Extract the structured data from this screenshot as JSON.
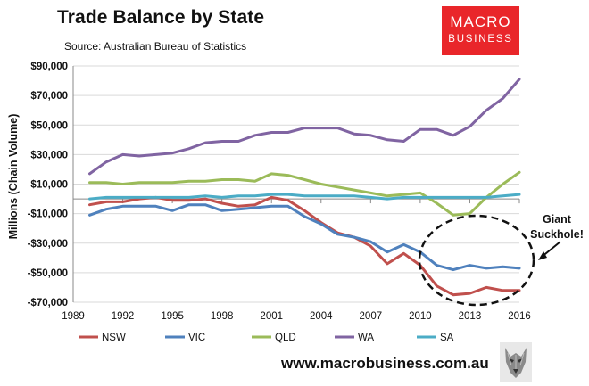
{
  "header": {
    "title": "Trade Balance by State",
    "source": "Source: Australian Bureau of Statistics"
  },
  "logo": {
    "line1": "MACRO",
    "line2": "BUSINESS"
  },
  "footer": {
    "website": "www.macrobusiness.com.au"
  },
  "annotation": {
    "line1": "Giant",
    "line2": "Suckhole!"
  },
  "colors": {
    "NSW": "#c0504d",
    "VIC": "#4f81bd",
    "QLD": "#9bbb59",
    "WA": "#8064a2",
    "SA": "#4bacc6",
    "brand": "#e9262a"
  },
  "chart_data": {
    "type": "line",
    "title": "Trade Balance by State",
    "xlabel": "",
    "ylabel": "Millions (Chain Volume)",
    "xlim": [
      1989,
      2016
    ],
    "ylim": [
      -70000,
      90000
    ],
    "x_ticks": [
      1989,
      1992,
      1995,
      1998,
      2001,
      2004,
      2007,
      2010,
      2013,
      2016
    ],
    "y_ticks": [
      -70000,
      -50000,
      -30000,
      -10000,
      10000,
      30000,
      50000,
      70000,
      90000
    ],
    "y_tick_labels": [
      "-$70,000",
      "-$50,000",
      "-$30,000",
      "-$10,000",
      "$10,000",
      "$30,000",
      "$50,000",
      "$70,000",
      "$90,000"
    ],
    "grid": "horizontal",
    "legend_position": "bottom",
    "x": [
      1990,
      1991,
      1992,
      1993,
      1994,
      1995,
      1996,
      1997,
      1998,
      1999,
      2000,
      2001,
      2002,
      2003,
      2004,
      2005,
      2006,
      2007,
      2008,
      2009,
      2010,
      2011,
      2012,
      2013,
      2014,
      2015,
      2016
    ],
    "series": [
      {
        "name": "NSW",
        "values": [
          -4000,
          -2000,
          -2000,
          0,
          1000,
          -1000,
          -1000,
          0,
          -3000,
          -5000,
          -4000,
          1000,
          -1000,
          -8000,
          -16000,
          -23000,
          -26000,
          -32000,
          -44000,
          -37000,
          -45000,
          -59000,
          -65000,
          -64000,
          -60000,
          -62000,
          -62000
        ]
      },
      {
        "name": "VIC",
        "values": [
          -11000,
          -7000,
          -5000,
          -5000,
          -5000,
          -8000,
          -4000,
          -4000,
          -8000,
          -7000,
          -6000,
          -5000,
          -5000,
          -12000,
          -17000,
          -24000,
          -26000,
          -29000,
          -36000,
          -31000,
          -36000,
          -45000,
          -48000,
          -45000,
          -47000,
          -46000,
          -47000
        ]
      },
      {
        "name": "QLD",
        "values": [
          11000,
          11000,
          10000,
          11000,
          11000,
          11000,
          12000,
          12000,
          13000,
          13000,
          12000,
          17000,
          16000,
          13000,
          10000,
          8000,
          6000,
          4000,
          2000,
          3000,
          4000,
          -3000,
          -11000,
          -10000,
          1000,
          10000,
          18000
        ]
      },
      {
        "name": "WA",
        "values": [
          17000,
          25000,
          30000,
          29000,
          30000,
          31000,
          34000,
          38000,
          39000,
          39000,
          43000,
          45000,
          45000,
          48000,
          48000,
          48000,
          44000,
          43000,
          40000,
          39000,
          47000,
          47000,
          43000,
          49000,
          60000,
          68000,
          81000
        ]
      },
      {
        "name": "SA",
        "values": [
          0,
          1000,
          1000,
          1000,
          1000,
          1000,
          1000,
          2000,
          1000,
          2000,
          2000,
          3000,
          3000,
          2000,
          2000,
          2000,
          2000,
          1000,
          0,
          1000,
          1000,
          1000,
          1000,
          1000,
          1000,
          2000,
          3000
        ]
      }
    ]
  }
}
